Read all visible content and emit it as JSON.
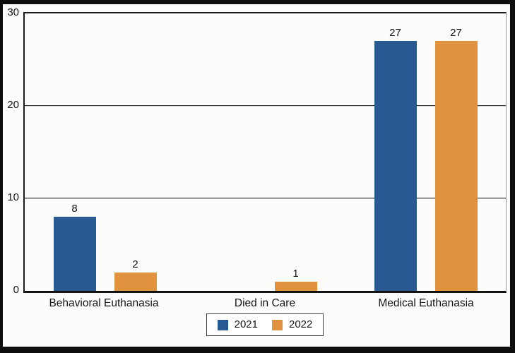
{
  "frame": {
    "background": "#fcfcfa",
    "border_color": "#0e0e0e"
  },
  "chart_data": {
    "type": "bar",
    "title": "",
    "categories": [
      "Behavioral Euthanasia",
      "Died in Care",
      "Medical Euthanasia"
    ],
    "series": [
      {
        "name": "2021",
        "color": "#2a5a94",
        "values": [
          8,
          0,
          27
        ]
      },
      {
        "name": "2022",
        "color": "#e0923e",
        "values": [
          2,
          1,
          27
        ]
      }
    ],
    "ylim": [
      0,
      30
    ],
    "yticks": [
      0,
      10,
      20,
      30
    ],
    "grid": "horizontal",
    "gridline_color": "#2e2e2e",
    "axis_color": "#1c1c1c",
    "text_color": "#141414",
    "legend_position": "bottom",
    "bar_value_labels_shown": true,
    "zero_value_bars_hidden": true
  }
}
